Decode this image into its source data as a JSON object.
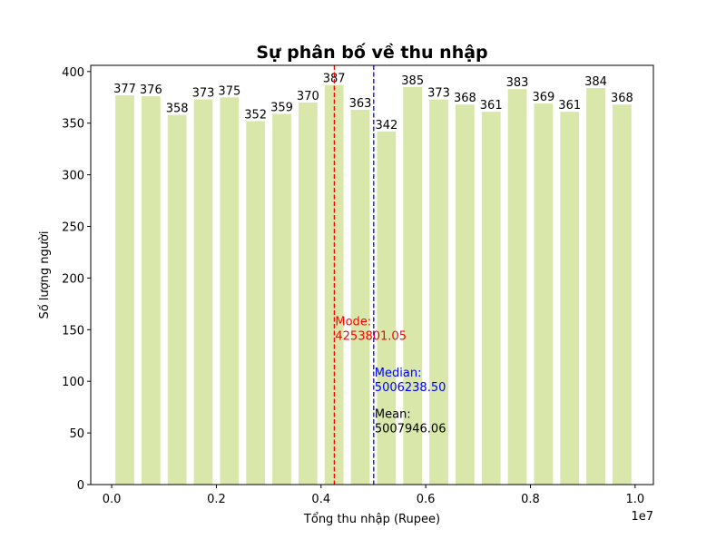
{
  "chart_data": {
    "type": "bar",
    "title": "Sự phân bố về thu nhập",
    "xlabel": "Tổng thu nhập (Rupee)",
    "ylabel": "Số lượng người",
    "x_offset_label": "1e7",
    "x_scale_factor": 10000000,
    "xlim": [
      -0.04,
      1.035
    ],
    "ylim": [
      0,
      406
    ],
    "x_ticks": [
      0.0,
      0.2,
      0.4,
      0.6,
      0.8,
      1.0
    ],
    "x_tick_labels": [
      "0.0",
      "0.2",
      "0.4",
      "0.6",
      "0.8",
      "1.0"
    ],
    "y_ticks": [
      0,
      50,
      100,
      150,
      200,
      250,
      300,
      350,
      400
    ],
    "y_tick_labels": [
      "0",
      "50",
      "100",
      "150",
      "200",
      "250",
      "300",
      "350",
      "400"
    ],
    "grid": false,
    "bars": {
      "x_centers": [
        0.025,
        0.075,
        0.125,
        0.175,
        0.225,
        0.275,
        0.325,
        0.375,
        0.425,
        0.475,
        0.525,
        0.575,
        0.625,
        0.675,
        0.725,
        0.775,
        0.825,
        0.875,
        0.925,
        0.975
      ],
      "width": 0.036,
      "values": [
        377,
        376,
        358,
        373,
        375,
        352,
        359,
        370,
        387,
        363,
        342,
        385,
        373,
        368,
        361,
        383,
        369,
        361,
        384,
        368
      ],
      "color": "#d9e7ab"
    },
    "reference_lines": [
      {
        "label": "Mode:",
        "value_text": "4253801.05",
        "x": 4253801.05,
        "color": "#ff0000",
        "style": "dashed",
        "text_y": 150
      },
      {
        "label": "Median:",
        "value_text": "5006238.50",
        "x": 5006238.5,
        "color": "#0000ff",
        "style": "dashed",
        "text_y": 100
      },
      {
        "label": "Mean:",
        "value_text": "5007946.06",
        "x": 5007946.06,
        "color": "#000000",
        "style": "none",
        "text_y": 60
      }
    ]
  }
}
